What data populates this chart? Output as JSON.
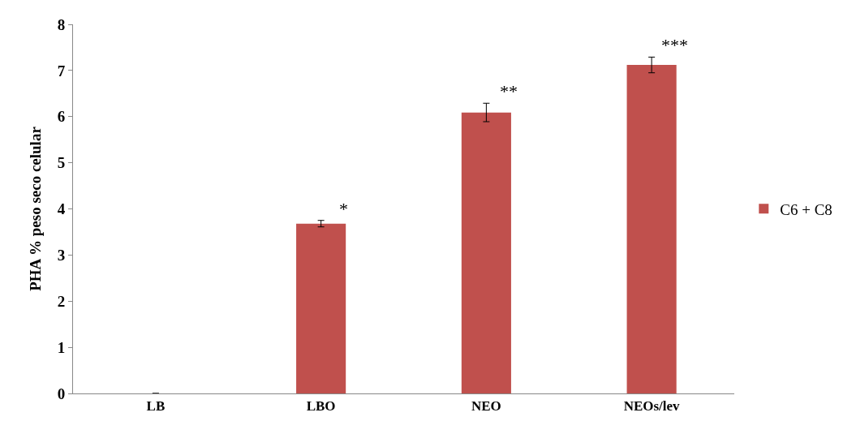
{
  "chart_data": {
    "type": "bar",
    "ylabel": "PHA % peso seco celular",
    "categories": [
      "LB",
      "LBO",
      "NEO",
      "NEOs/lev"
    ],
    "series": [
      {
        "name": "C6 + C8",
        "color": "#c0504d",
        "values": [
          0,
          3.68,
          6.09,
          7.12
        ],
        "errors": [
          null,
          0.07,
          0.2,
          0.17
        ]
      }
    ],
    "ylim": [
      0,
      8
    ],
    "yticks": [
      0,
      1,
      2,
      3,
      4,
      5,
      6,
      7,
      8
    ],
    "legend": "right",
    "annotations": [
      "*",
      "**",
      "***"
    ]
  }
}
